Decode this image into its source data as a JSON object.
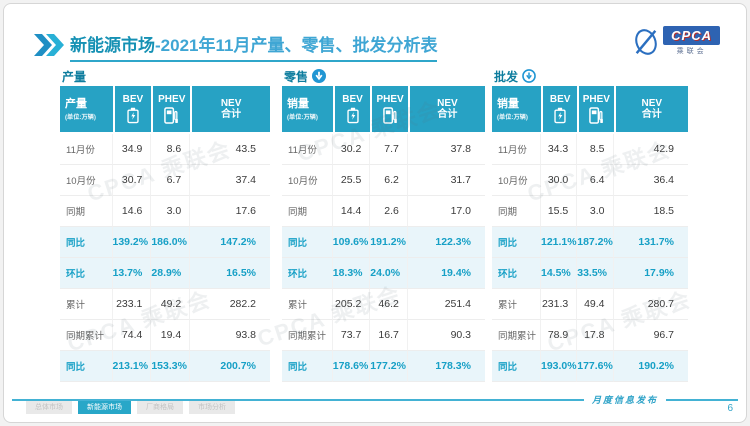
{
  "slide": {
    "title_main": "新能源市场",
    "title_rest": "-2021年11月产量、零售、批发分析表",
    "logo": {
      "text": "CPCA",
      "subtext": "乘联会"
    },
    "watermark": "CPCA 乘联会",
    "footer": {
      "center_label": "月度信息发布",
      "page_number": "6",
      "tabs": [
        {
          "label": "总体市场",
          "active": false
        },
        {
          "label": "新能源市场",
          "active": true
        },
        {
          "label": "厂商格局",
          "active": false
        },
        {
          "label": "市场分析",
          "active": false
        }
      ]
    },
    "colors": {
      "teal_header": "#27a2c4",
      "teal_text": "#17a0c6",
      "highlight_row_bg": "#e9f5fa",
      "title_dark": "#1691b4",
      "title_light": "#3fa6d4",
      "logo_blue": "#2e63b2",
      "arrow_blue": "#2196d3"
    }
  },
  "tables": [
    {
      "section_title": "产量",
      "arrow_icon": "none",
      "corner_label": "产量",
      "unit": "(单位:万辆)",
      "columns": [
        "BEV",
        "PHEV",
        "NEV\n合计"
      ],
      "rows": [
        {
          "label": "11月份",
          "values": [
            "34.9",
            "8.6",
            "43.5"
          ],
          "highlight": false
        },
        {
          "label": "10月份",
          "values": [
            "30.7",
            "6.7",
            "37.4"
          ],
          "highlight": false
        },
        {
          "label": "同期",
          "values": [
            "14.6",
            "3.0",
            "17.6"
          ],
          "highlight": false
        },
        {
          "label": "同比",
          "values": [
            "139.2%",
            "186.0%",
            "147.2%"
          ],
          "highlight": true
        },
        {
          "label": "环比",
          "values": [
            "13.7%",
            "28.9%",
            "16.5%"
          ],
          "highlight": true
        },
        {
          "label": "累计",
          "values": [
            "233.1",
            "49.2",
            "282.2"
          ],
          "highlight": false
        },
        {
          "label": "同期累计",
          "values": [
            "74.4",
            "19.4",
            "93.8"
          ],
          "highlight": false
        },
        {
          "label": "同比",
          "values": [
            "213.1%",
            "153.3%",
            "200.7%"
          ],
          "highlight": true
        }
      ]
    },
    {
      "section_title": "零售",
      "arrow_icon": "down-arrow-filled",
      "corner_label": "销量",
      "unit": "(单位:万辆)",
      "columns": [
        "BEV",
        "PHEV",
        "NEV\n合计"
      ],
      "rows": [
        {
          "label": "11月份",
          "values": [
            "30.2",
            "7.7",
            "37.8"
          ],
          "highlight": false
        },
        {
          "label": "10月份",
          "values": [
            "25.5",
            "6.2",
            "31.7"
          ],
          "highlight": false
        },
        {
          "label": "同期",
          "values": [
            "14.4",
            "2.6",
            "17.0"
          ],
          "highlight": false
        },
        {
          "label": "同比",
          "values": [
            "109.6%",
            "191.2%",
            "122.3%"
          ],
          "highlight": true
        },
        {
          "label": "环比",
          "values": [
            "18.3%",
            "24.0%",
            "19.4%"
          ],
          "highlight": true
        },
        {
          "label": "累计",
          "values": [
            "205.2",
            "46.2",
            "251.4"
          ],
          "highlight": false
        },
        {
          "label": "同期累计",
          "values": [
            "73.7",
            "16.7",
            "90.3"
          ],
          "highlight": false
        },
        {
          "label": "同比",
          "values": [
            "178.6%",
            "177.2%",
            "178.3%"
          ],
          "highlight": true
        }
      ]
    },
    {
      "section_title": "批发",
      "arrow_icon": "down-arrow-outline",
      "corner_label": "销量",
      "unit": "(单位:万辆)",
      "columns": [
        "BEV",
        "PHEV",
        "NEV\n合计"
      ],
      "rows": [
        {
          "label": "11月份",
          "values": [
            "34.3",
            "8.5",
            "42.9"
          ],
          "highlight": false
        },
        {
          "label": "10月份",
          "values": [
            "30.0",
            "6.4",
            "36.4"
          ],
          "highlight": false
        },
        {
          "label": "同期",
          "values": [
            "15.5",
            "3.0",
            "18.5"
          ],
          "highlight": false
        },
        {
          "label": "同比",
          "values": [
            "121.1%",
            "187.2%",
            "131.7%"
          ],
          "highlight": true
        },
        {
          "label": "环比",
          "values": [
            "14.5%",
            "33.5%",
            "17.9%"
          ],
          "highlight": true
        },
        {
          "label": "累计",
          "values": [
            "231.3",
            "49.4",
            "280.7"
          ],
          "highlight": false
        },
        {
          "label": "同期累计",
          "values": [
            "78.9",
            "17.8",
            "96.7"
          ],
          "highlight": false
        },
        {
          "label": "同比",
          "values": [
            "193.0%",
            "177.6%",
            "190.2%"
          ],
          "highlight": true
        }
      ]
    }
  ]
}
